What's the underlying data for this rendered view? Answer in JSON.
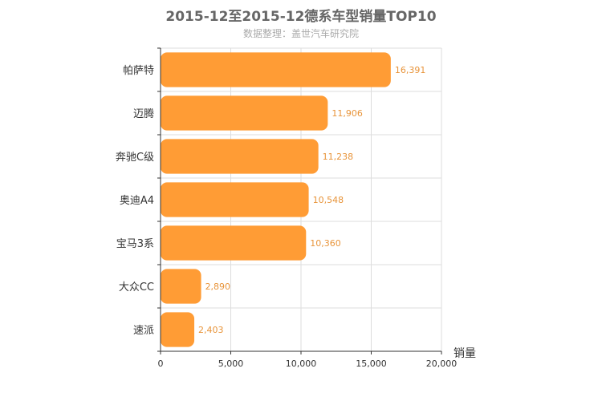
{
  "title": "2015-12至2015-12德系车型销量TOP10",
  "subtitle": "数据整理：盖世汽车研究院",
  "colors": {
    "bar": "#ff9c35",
    "grid": "#dddddd",
    "axis": "#333333",
    "data_label": "#e8943a"
  },
  "chart_data": {
    "type": "bar",
    "orientation": "horizontal",
    "categories": [
      "帕萨特",
      "迈腾",
      "奔驰C级",
      "奥迪A4",
      "宝马3系",
      "大众CC",
      "速派"
    ],
    "values": [
      16391,
      11906,
      11238,
      10548,
      10360,
      2890,
      2403
    ],
    "value_labels": [
      "16,391",
      "11,906",
      "11,238",
      "10,548",
      "10,360",
      "2,890",
      "2,403"
    ],
    "xlabel": "销量",
    "ylabel": "",
    "xlim": [
      0,
      20000
    ],
    "xticks": [
      0,
      5000,
      10000,
      15000,
      20000
    ],
    "xtick_labels": [
      "0",
      "5,000",
      "10,000",
      "15,000",
      "20,000"
    ],
    "grid": true,
    "legend": "none"
  }
}
